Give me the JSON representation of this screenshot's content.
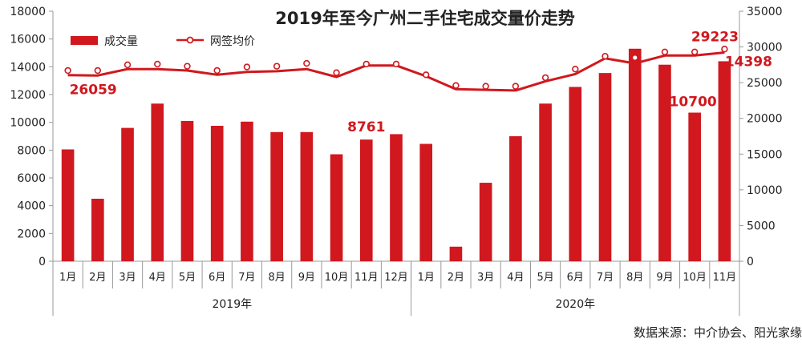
{
  "chart_data": {
    "type": "bar+line",
    "title": "2019年至今广州二手住宅成交量价走势",
    "categories": [
      "1月",
      "2月",
      "3月",
      "4月",
      "5月",
      "6月",
      "7月",
      "8月",
      "9月",
      "10月",
      "11月",
      "12月",
      "1月",
      "2月",
      "3月",
      "4月",
      "5月",
      "6月",
      "7月",
      "8月",
      "9月",
      "10月",
      "11月"
    ],
    "groups": [
      {
        "label": "2019年",
        "count": 12
      },
      {
        "label": "2020年",
        "count": 11
      }
    ],
    "series": [
      {
        "name": "成交量",
        "type": "bar",
        "axis": "left",
        "color": "#d0181e",
        "values": [
          8050,
          4500,
          9600,
          11350,
          10100,
          9750,
          10050,
          9300,
          9300,
          7700,
          8761,
          9150,
          8450,
          1050,
          5650,
          9000,
          11350,
          12550,
          13550,
          15300,
          14150,
          10700,
          14398
        ]
      },
      {
        "name": "网签均价",
        "type": "line",
        "axis": "right",
        "color": "#d0181e",
        "values": [
          26059,
          26000,
          26900,
          26900,
          26700,
          26100,
          26500,
          26600,
          26900,
          25800,
          27400,
          27400,
          25900,
          24100,
          24000,
          23900,
          25200,
          26200,
          28400,
          27700,
          28800,
          28800,
          29223
        ],
        "marker_values": [
          26700,
          26700,
          27500,
          27600,
          27300,
          26700,
          27200,
          27300,
          27700,
          26400,
          27600,
          27600,
          26100,
          24600,
          24500,
          24500,
          25700,
          26900,
          28700,
          28500,
          29300,
          29300,
          29700
        ]
      }
    ],
    "y_left": {
      "min": 0,
      "max": 18000,
      "step": 2000
    },
    "y_right": {
      "min": 0,
      "max": 35000,
      "step": 5000
    },
    "data_labels": [
      {
        "series": "网签均价",
        "index": 0,
        "text": "26059"
      },
      {
        "series": "成交量",
        "index": 10,
        "text": "8761"
      },
      {
        "series": "成交量",
        "index": 21,
        "text": "10700"
      },
      {
        "series": "网签均价",
        "index": 22,
        "text": "29223"
      },
      {
        "series": "成交量",
        "index": 22,
        "text": "14398"
      }
    ],
    "legend": {
      "position": "top-left"
    },
    "source": "数据来源：中介协会、阳光家缘",
    "grid": false
  }
}
